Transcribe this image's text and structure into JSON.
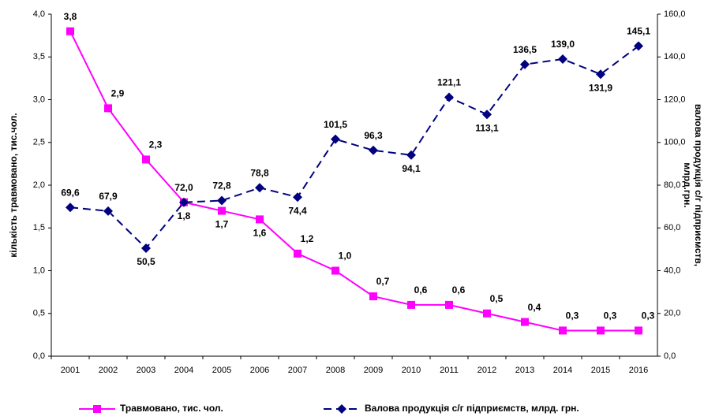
{
  "chart_data": {
    "type": "line",
    "categories": [
      "2001",
      "2002",
      "2003",
      "2004",
      "2005",
      "2006",
      "2007",
      "2008",
      "2009",
      "2010",
      "2011",
      "2012",
      "2013",
      "2014",
      "2015",
      "2016"
    ],
    "ylabel": "кількість травмовано, тис.чол.",
    "y2label": [
      "валова продукція с/г підприємств,",
      "млрд.грн."
    ],
    "ylim": [
      0,
      4.0
    ],
    "yticks": [
      {
        "value": 0,
        "label": "0,0"
      },
      {
        "value": 0.5,
        "label": "0,5"
      },
      {
        "value": 1.0,
        "label": "1,0"
      },
      {
        "value": 1.5,
        "label": "1,5"
      },
      {
        "value": 2.0,
        "label": "2,0"
      },
      {
        "value": 2.5,
        "label": "2,5"
      },
      {
        "value": 3.0,
        "label": "3,0"
      },
      {
        "value": 3.5,
        "label": "3,5"
      },
      {
        "value": 4.0,
        "label": "4,0"
      }
    ],
    "y2lim": [
      0,
      160
    ],
    "y2ticks": [
      {
        "value": 0,
        "label": "0,0"
      },
      {
        "value": 20,
        "label": "20,0"
      },
      {
        "value": 40,
        "label": "40,0"
      },
      {
        "value": 60,
        "label": "60,0"
      },
      {
        "value": 80,
        "label": "80,0"
      },
      {
        "value": 100,
        "label": "100,0"
      },
      {
        "value": 120,
        "label": "120,0"
      },
      {
        "value": 140,
        "label": "140,0"
      },
      {
        "value": 160,
        "label": "160,0"
      }
    ],
    "series": [
      {
        "name": "Травмовано, тис. чол.",
        "color": "#ff00ff",
        "values": [
          3.8,
          2.9,
          2.3,
          1.8,
          1.7,
          1.6,
          1.2,
          1.0,
          0.7,
          0.6,
          0.6,
          0.5,
          0.4,
          0.3,
          0.3,
          0.3
        ],
        "value_labels": [
          "3,8",
          "2,9",
          "2,3",
          "1,8",
          "1,7",
          "1,6",
          "1,2",
          "1,0",
          "0,7",
          "0,6",
          "0,6",
          "0,5",
          "0,4",
          "0,3",
          "0,3",
          "0,3"
        ]
      },
      {
        "name": "Валова продукція с/г підприємств, млрд. грн.",
        "color": "#000080",
        "axis": "y2",
        "values": [
          69.6,
          67.9,
          50.5,
          72.0,
          72.8,
          78.8,
          74.4,
          101.5,
          96.3,
          94.1,
          121.1,
          113.1,
          136.5,
          139.0,
          131.9,
          145.1
        ],
        "value_labels": [
          "69,6",
          "67,9",
          "50,5",
          "72,0",
          "72,8",
          "78,8",
          "74,4",
          "101,5",
          "96,3",
          "94,1",
          "121,1",
          "113,1",
          "136,5",
          "139,0",
          "131,9",
          "145,1"
        ]
      }
    ]
  }
}
